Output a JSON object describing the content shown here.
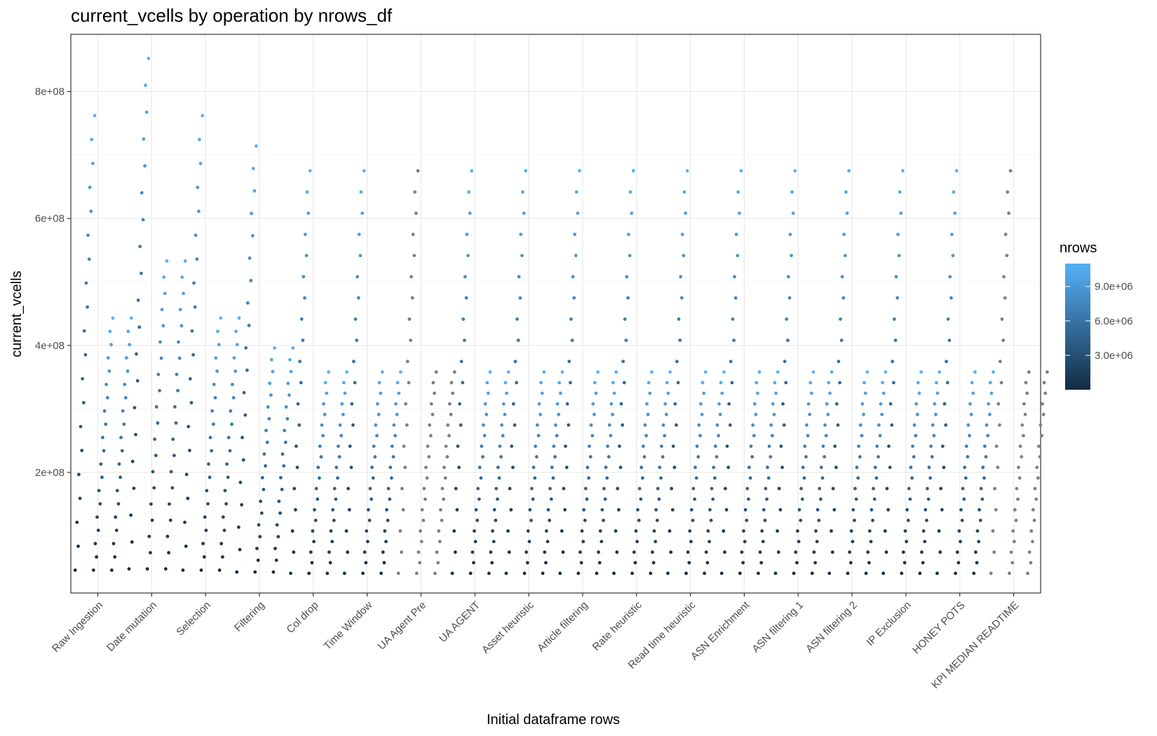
{
  "chart_data": {
    "type": "scatter",
    "title": "current_vcells by operation by nrows_df",
    "xlabel": "Initial dataframe rows",
    "ylabel": "current_vcells",
    "categories": [
      "Raw Ingestion",
      "Date mutation",
      "Selection",
      "Filtering",
      "Col drop",
      "Time Window",
      "UA Agent Pre",
      "UA AGENT",
      "Asset heuristic",
      "Article filtering",
      "Rate heuristic",
      "Read time heuristic",
      "ASN Enrichment",
      "ASN filtering 1",
      "ASN filtering 2",
      "IP Exclusion",
      "HONEY POTS",
      "KPI MEDIAN READTIME"
    ],
    "y_ticks": [
      200000000,
      400000000,
      600000000,
      800000000
    ],
    "y_tick_labels": [
      "2e+08",
      "4e+08",
      "6e+08",
      "8e+08"
    ],
    "ylim": [
      10000000,
      890000000
    ],
    "grid": true,
    "legend": {
      "title": "nrows",
      "position": "right",
      "type": "colorbar",
      "breaks": [
        3000000,
        6000000,
        9000000
      ],
      "labels": [
        "3.0e+06",
        "6.0e+06",
        "9.0e+06"
      ],
      "range": [
        0,
        11000000
      ],
      "low_color": "#132b43",
      "high_color": "#56b1f7"
    },
    "series_description": "Each operation is a column of jittered points; each point is one run (colored by nrows), with current_vcells rising roughly linearly with nrows within each group",
    "point_groups": [
      {
        "category": "Raw Ingestion",
        "runs": 3,
        "y_start": 46000000,
        "y_top": [
          762000000,
          443000000,
          443000000
        ],
        "nrows_max": 11000000,
        "colored": true
      },
      {
        "category": "Date mutation",
        "runs": 3,
        "y_start": 48000000,
        "y_top": [
          852000000,
          533000000,
          533000000
        ],
        "nrows_max": 11000000,
        "colored": true
      },
      {
        "category": "Selection",
        "runs": 3,
        "y_start": 46000000,
        "y_top": [
          762000000,
          443000000,
          443000000
        ],
        "nrows_max": 11000000,
        "colored": true
      },
      {
        "category": "Filtering",
        "runs": 3,
        "y_start": 43000000,
        "y_top": [
          714000000,
          396000000,
          396000000
        ],
        "nrows_max": 11000000,
        "colored": true
      },
      {
        "category": "Col drop",
        "runs": 3,
        "y_start": 41000000,
        "y_top": [
          675000000,
          358000000,
          358000000
        ],
        "nrows_max": 11000000,
        "colored": true
      },
      {
        "category": "Time Window",
        "runs": 3,
        "y_start": 41000000,
        "y_top": [
          675000000,
          358000000,
          358000000
        ],
        "nrows_max": 11000000,
        "colored": true
      },
      {
        "category": "UA Agent Pre",
        "runs": 3,
        "y_start": 41000000,
        "y_top": [
          675000000,
          358000000,
          358000000
        ],
        "nrows_max": 11000000,
        "colored": false
      },
      {
        "category": "UA AGENT",
        "runs": 3,
        "y_start": 41000000,
        "y_top": [
          675000000,
          358000000,
          358000000
        ],
        "nrows_max": 11000000,
        "colored": true
      },
      {
        "category": "Asset heuristic",
        "runs": 3,
        "y_start": 41000000,
        "y_top": [
          675000000,
          358000000,
          358000000
        ],
        "nrows_max": 11000000,
        "colored": true
      },
      {
        "category": "Article filtering",
        "runs": 3,
        "y_start": 41000000,
        "y_top": [
          675000000,
          358000000,
          358000000
        ],
        "nrows_max": 11000000,
        "colored": true
      },
      {
        "category": "Rate heuristic",
        "runs": 3,
        "y_start": 41000000,
        "y_top": [
          675000000,
          358000000,
          358000000
        ],
        "nrows_max": 11000000,
        "colored": true
      },
      {
        "category": "Read time heuristic",
        "runs": 3,
        "y_start": 41000000,
        "y_top": [
          675000000,
          358000000,
          358000000
        ],
        "nrows_max": 11000000,
        "colored": true
      },
      {
        "category": "ASN Enrichment",
        "runs": 3,
        "y_start": 41000000,
        "y_top": [
          675000000,
          358000000,
          358000000
        ],
        "nrows_max": 11000000,
        "colored": true
      },
      {
        "category": "ASN filtering 1",
        "runs": 3,
        "y_start": 41000000,
        "y_top": [
          675000000,
          358000000,
          358000000
        ],
        "nrows_max": 11000000,
        "colored": true
      },
      {
        "category": "ASN filtering 2",
        "runs": 3,
        "y_start": 41000000,
        "y_top": [
          675000000,
          358000000,
          358000000
        ],
        "nrows_max": 11000000,
        "colored": true
      },
      {
        "category": "IP Exclusion",
        "runs": 3,
        "y_start": 41000000,
        "y_top": [
          675000000,
          358000000,
          358000000
        ],
        "nrows_max": 11000000,
        "colored": true
      },
      {
        "category": "HONEY POTS",
        "runs": 3,
        "y_start": 41000000,
        "y_top": [
          675000000,
          358000000,
          358000000
        ],
        "nrows_max": 11000000,
        "colored": true
      },
      {
        "category": "KPI MEDIAN READTIME",
        "runs": 3,
        "y_start": 41000000,
        "y_top": [
          675000000,
          358000000,
          358000000
        ],
        "nrows_max": 11000000,
        "colored": false
      }
    ]
  },
  "colors": {
    "panel_border": "#333333",
    "grid_major": "#ebebeb",
    "grid_minor": "#f5f5f5",
    "na_point": "#7f7f7f"
  }
}
